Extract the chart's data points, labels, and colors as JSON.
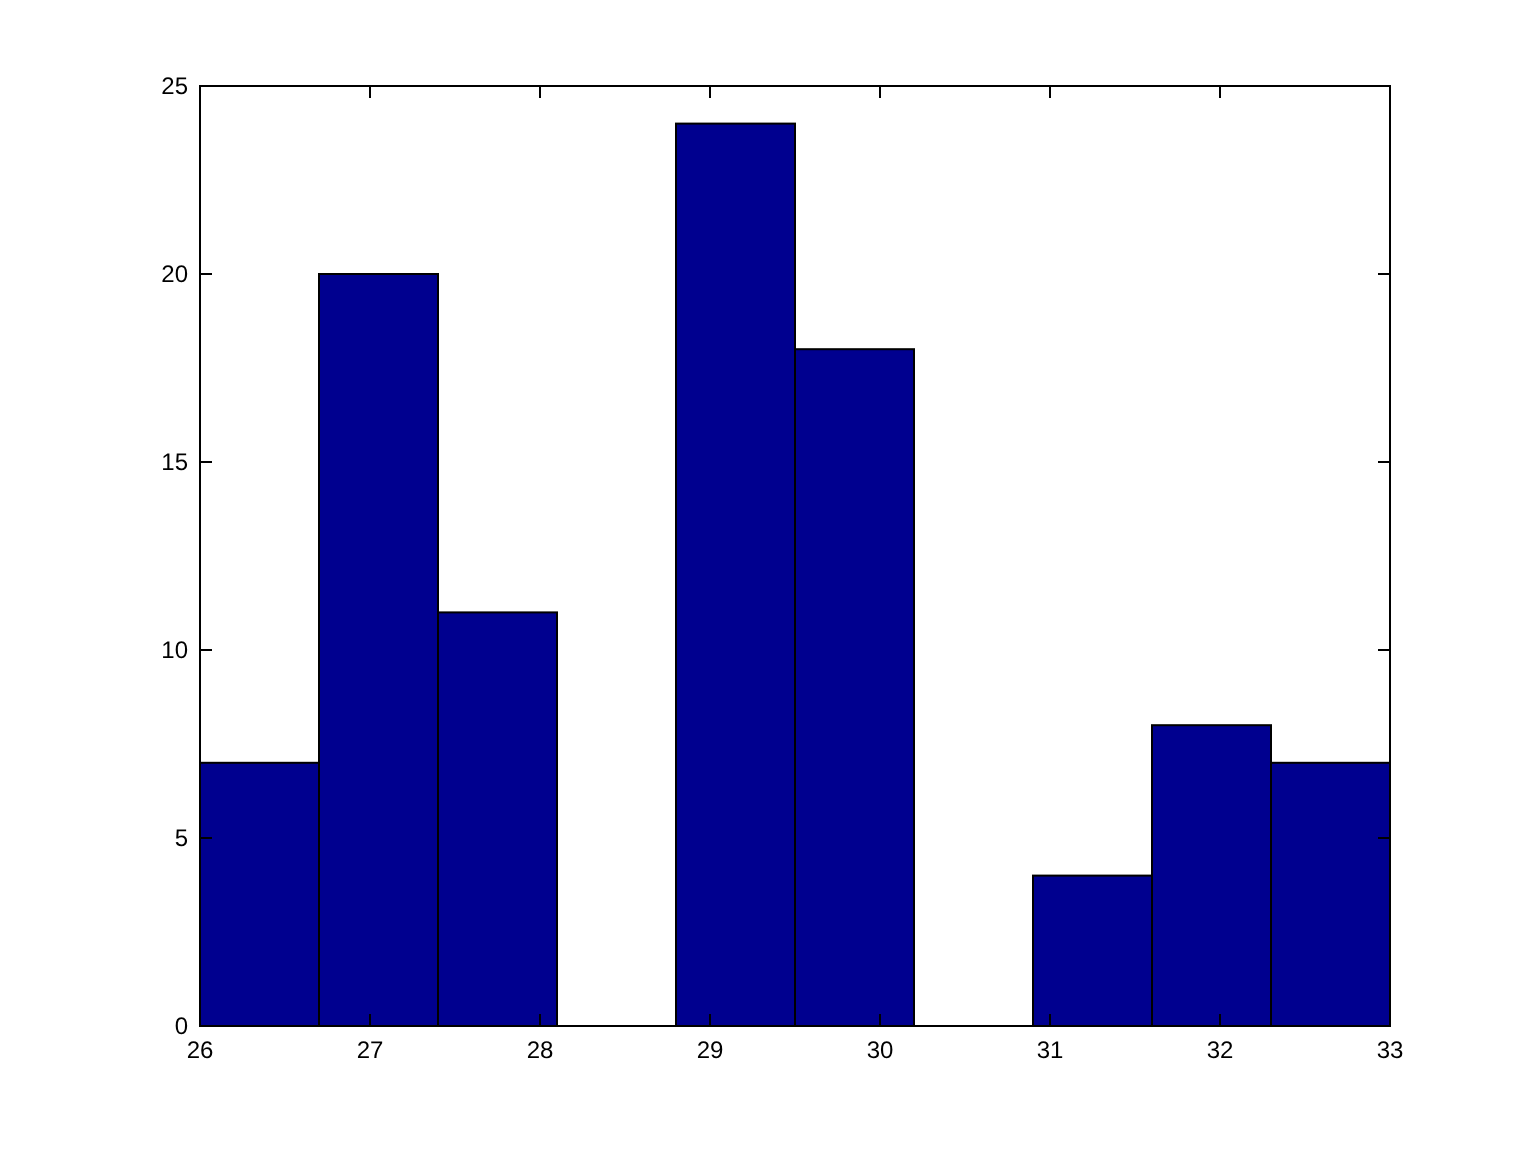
{
  "chart_data": {
    "type": "histogram",
    "bins": [
      26,
      26.7,
      27.4,
      28.1,
      28.8,
      29.5,
      30.2,
      30.9,
      31.6,
      32.3,
      33
    ],
    "values": [
      7,
      20,
      11,
      0,
      24,
      18,
      0,
      4,
      8,
      7
    ],
    "color": "#00008f",
    "xlim": [
      26,
      33
    ],
    "xticks": [
      26,
      27,
      28,
      29,
      30,
      31,
      32,
      33
    ],
    "ylim": [
      0,
      25
    ],
    "yticks": [
      0,
      5,
      10,
      15,
      20,
      25
    ],
    "grid": false
  }
}
